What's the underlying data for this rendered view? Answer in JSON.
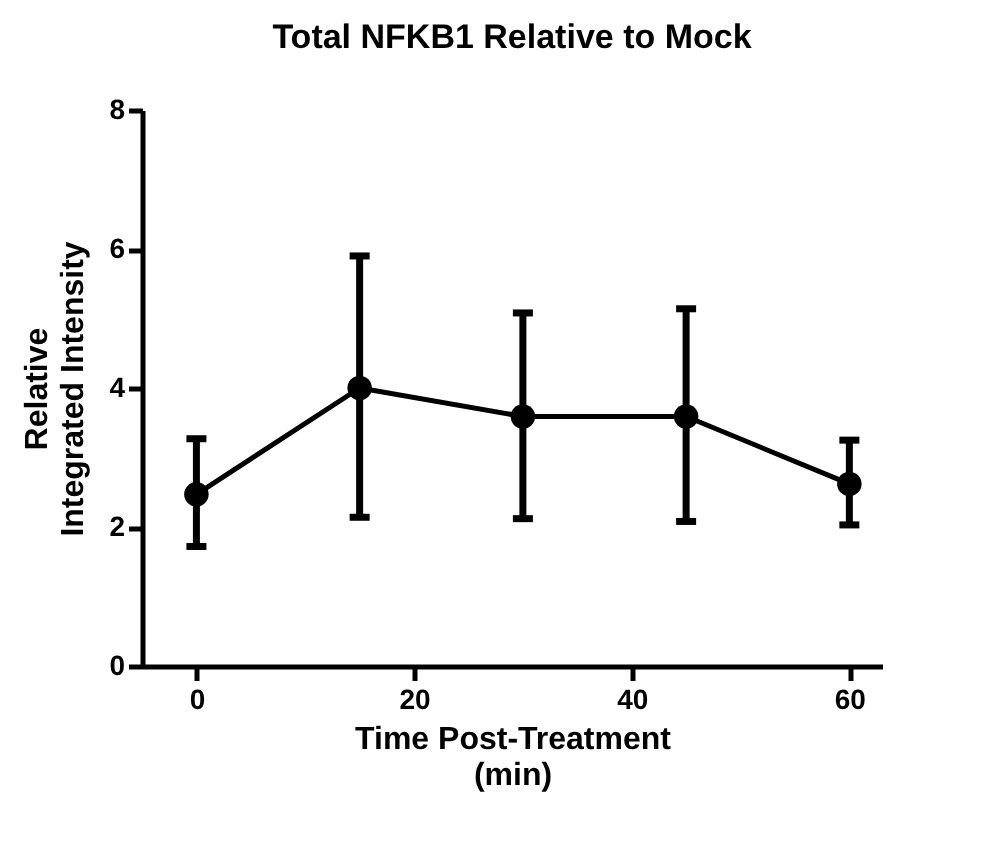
{
  "chart_data": {
    "type": "line",
    "title": "Total NFKB1 Relative to Mock",
    "xlabel": "Time Post-Treatment\n(min)",
    "ylabel": "Relative\nIntegrated Intensity",
    "x": [
      0,
      15,
      30,
      45,
      60
    ],
    "series": [
      {
        "color": "#000000",
        "values": [
          2.47,
          4.0,
          3.59,
          3.59,
          2.62
        ],
        "errors": [
          [
            1.72,
            3.27
          ],
          [
            2.14,
            5.9
          ],
          [
            2.12,
            5.08
          ],
          [
            2.08,
            5.14
          ],
          [
            2.03,
            3.25
          ]
        ]
      }
    ],
    "xlim": [
      -5,
      63
    ],
    "xticks": [
      0,
      20,
      40,
      60
    ],
    "ylim": [
      0,
      8
    ],
    "yticks": [
      0,
      2,
      4,
      6,
      8
    ],
    "marker": "circle",
    "line_style": "solid",
    "grid": false
  }
}
